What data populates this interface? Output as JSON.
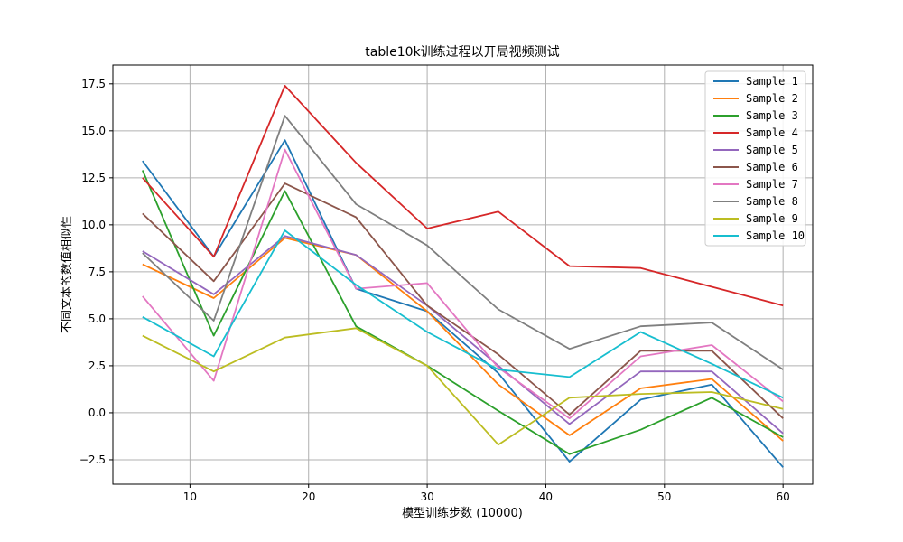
{
  "chart_data": {
    "type": "line",
    "title": "table10k训练过程以开局视频测试",
    "xlabel": "模型训练步数 (10000)",
    "ylabel": "不同文本的数值相似性",
    "xlim": [
      3.5,
      62.5
    ],
    "ylim": [
      -3.8,
      18.5
    ],
    "xticks": [
      10,
      20,
      30,
      40,
      50,
      60
    ],
    "yticks": [
      -2.5,
      0.0,
      2.5,
      5.0,
      7.5,
      10.0,
      12.5,
      15.0,
      17.5
    ],
    "xtick_labels": [
      "10",
      "20",
      "30",
      "40",
      "50",
      "60"
    ],
    "ytick_labels": [
      "−2.5",
      "0.0",
      "2.5",
      "5.0",
      "7.5",
      "10.0",
      "12.5",
      "15.0",
      "17.5"
    ],
    "grid": true,
    "legend_position": "top-right",
    "x": [
      6,
      12,
      18,
      24,
      30,
      36,
      42,
      48,
      54,
      60
    ],
    "series": [
      {
        "name": "Sample 1",
        "color": "#1f77b4",
        "values": [
          13.4,
          8.3,
          14.5,
          6.6,
          5.4,
          2.1,
          -2.6,
          0.7,
          1.5,
          -2.9
        ]
      },
      {
        "name": "Sample 2",
        "color": "#ff7f0e",
        "values": [
          7.9,
          6.1,
          9.3,
          8.4,
          5.4,
          1.5,
          -1.2,
          1.3,
          1.8,
          -1.5
        ]
      },
      {
        "name": "Sample 3",
        "color": "#2ca02c",
        "values": [
          12.9,
          4.1,
          11.8,
          4.6,
          2.5,
          0.1,
          -2.2,
          -0.9,
          0.8,
          -1.3
        ]
      },
      {
        "name": "Sample 4",
        "color": "#d62728",
        "values": [
          12.5,
          8.3,
          17.4,
          13.3,
          9.8,
          10.7,
          7.8,
          7.7,
          6.7,
          5.7
        ]
      },
      {
        "name": "Sample 5",
        "color": "#9467bd",
        "values": [
          8.6,
          6.3,
          9.4,
          8.4,
          5.7,
          2.5,
          -0.6,
          2.2,
          2.2,
          -1.1
        ]
      },
      {
        "name": "Sample 6",
        "color": "#8c564b",
        "values": [
          10.6,
          7.0,
          12.2,
          10.4,
          5.7,
          3.1,
          -0.1,
          3.3,
          3.3,
          -0.3
        ]
      },
      {
        "name": "Sample 7",
        "color": "#e377c2",
        "values": [
          6.2,
          1.7,
          14.0,
          6.6,
          6.9,
          2.4,
          -0.3,
          3.0,
          3.6,
          0.6
        ]
      },
      {
        "name": "Sample 8",
        "color": "#7f7f7f",
        "values": [
          8.5,
          4.9,
          15.8,
          11.1,
          8.9,
          5.5,
          3.4,
          4.6,
          4.8,
          2.3
        ]
      },
      {
        "name": "Sample 9",
        "color": "#bcbd22",
        "values": [
          4.1,
          2.2,
          4.0,
          4.5,
          2.5,
          -1.7,
          0.8,
          1.0,
          1.1,
          0.2
        ]
      },
      {
        "name": "Sample 10",
        "color": "#17becf",
        "values": [
          5.1,
          3.0,
          9.7,
          6.8,
          4.3,
          2.3,
          1.9,
          4.3,
          2.6,
          0.8
        ]
      }
    ]
  }
}
